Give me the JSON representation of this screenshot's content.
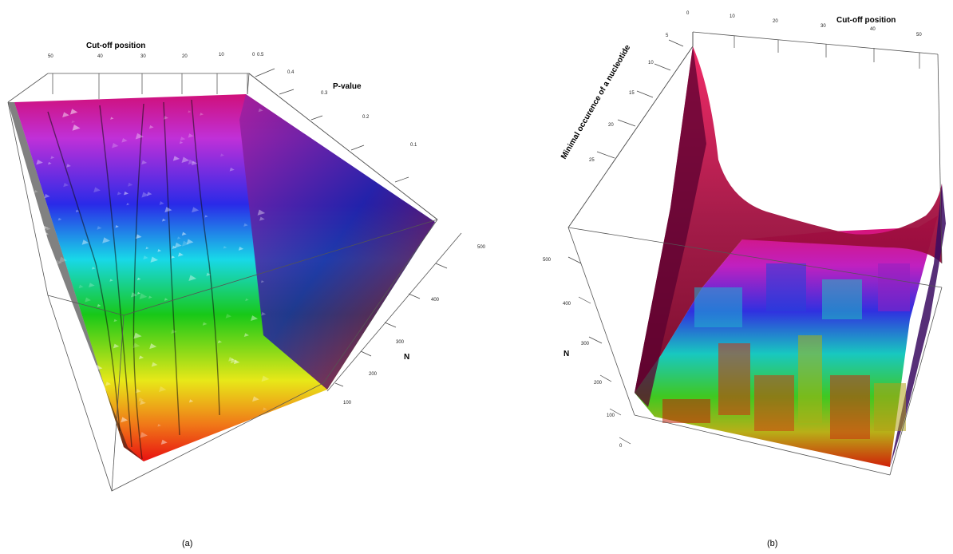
{
  "chart_data": [
    {
      "type": "surface",
      "panel_label": "(a)",
      "axes": {
        "x": {
          "label": "Cut-off position",
          "ticks": [
            "50",
            "40",
            "30",
            "20",
            "10",
            "0"
          ]
        },
        "y": {
          "label": "P-value",
          "ticks": [
            "0.5",
            "0.4",
            "0.3",
            "0.2",
            "0.1"
          ]
        },
        "z": {
          "label": "N",
          "ticks": [
            "100",
            "200",
            "300",
            "400",
            "500"
          ]
        }
      },
      "colormap": "rainbow (red low N to magenta high N)"
    },
    {
      "type": "surface",
      "panel_label": "(b)",
      "axes": {
        "x": {
          "label": "Cut-off position",
          "ticks": [
            "0",
            "10",
            "20",
            "30",
            "40",
            "50"
          ]
        },
        "y": {
          "label": "Minimal occurence of a nucleotide",
          "ticks": [
            "5",
            "10",
            "15",
            "20",
            "25"
          ]
        },
        "z": {
          "label": "N",
          "ticks": [
            "0",
            "100",
            "200",
            "300",
            "400",
            "500"
          ]
        }
      },
      "colormap": "rainbow (red low N to magenta high N)"
    }
  ]
}
